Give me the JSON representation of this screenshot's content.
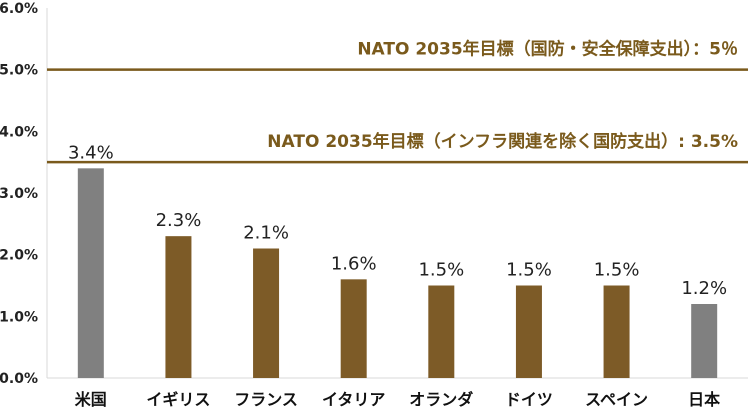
{
  "chart_data": {
    "type": "bar",
    "categories": [
      "米国",
      "イギリス",
      "フランス",
      "イタリア",
      "オランダ",
      "ドイツ",
      "スペイン",
      "日本"
    ],
    "values": [
      3.4,
      2.3,
      2.1,
      1.6,
      1.5,
      1.5,
      1.5,
      1.2
    ],
    "value_labels": [
      "3.4%",
      "2.3%",
      "2.1%",
      "1.6%",
      "1.5%",
      "1.5%",
      "1.5%",
      "1.2%"
    ],
    "bar_colors": [
      "#808080",
      "#7d5b27",
      "#7d5b27",
      "#7d5b27",
      "#7d5b27",
      "#7d5b27",
      "#7d5b27",
      "#808080"
    ],
    "ylim": [
      0,
      6
    ],
    "yticks": [
      0,
      1,
      2,
      3,
      4,
      5,
      6
    ],
    "ytick_labels": [
      "0.0%",
      "1.0%",
      "2.0%",
      "3.0%",
      "4.0%",
      "5.0%",
      "6.0%"
    ],
    "grid": false,
    "reference_lines": [
      {
        "value": 5.0,
        "label": "NATO 2035年目標（国防・安全保障支出）：5％",
        "color": "#7a5a1c"
      },
      {
        "value": 3.5,
        "label": "NATO 2035年目標（インフラ関連を除く国防支出）: 3.5%",
        "color": "#7a5a1c"
      }
    ],
    "title": "",
    "xlabel": "",
    "ylabel": ""
  }
}
